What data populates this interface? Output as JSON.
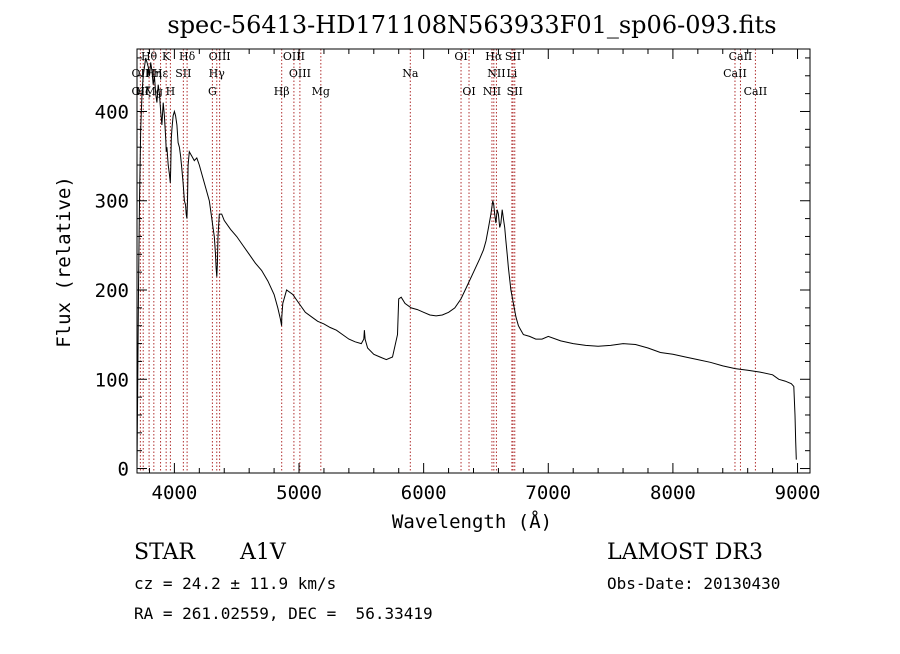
{
  "chart_data": {
    "type": "line",
    "title": "spec-56413-HD171108N563933F01_sp06-093.fits",
    "xlabel": "Wavelength (Å)",
    "ylabel": "Flux (relative)",
    "xlim": [
      3700,
      9100
    ],
    "ylim": [
      -5,
      470
    ],
    "xticks": [
      4000,
      5000,
      6000,
      7000,
      8000,
      9000
    ],
    "yticks": [
      0,
      100,
      200,
      300,
      400
    ],
    "grid": false,
    "series": [
      {
        "color": "#000000",
        "x": [
          3700,
          3705,
          3712,
          3720,
          3730,
          3740,
          3750,
          3760,
          3770,
          3780,
          3790,
          3800,
          3810,
          3820,
          3830,
          3840,
          3850,
          3860,
          3870,
          3880,
          3890,
          3900,
          3910,
          3920,
          3930,
          3935,
          3940,
          3950,
          3960,
          3967,
          3970,
          3975,
          3980,
          3990,
          4000,
          4010,
          4020,
          4030,
          4040,
          4050,
          4060,
          4070,
          4080,
          4090,
          4095,
          4100,
          4105,
          4110,
          4120,
          4140,
          4160,
          4180,
          4200,
          4220,
          4240,
          4260,
          4280,
          4300,
          4310,
          4320,
          4330,
          4335,
          4340,
          4345,
          4350,
          4360,
          4380,
          4400,
          4450,
          4500,
          4550,
          4600,
          4650,
          4700,
          4750,
          4800,
          4830,
          4850,
          4860,
          4862,
          4870,
          4880,
          4900,
          4950,
          5000,
          5050,
          5100,
          5150,
          5200,
          5250,
          5300,
          5350,
          5400,
          5450,
          5500,
          5520,
          5525,
          5530,
          5550,
          5600,
          5650,
          5700,
          5750,
          5790,
          5800,
          5820,
          5850,
          5900,
          5950,
          6000,
          6050,
          6100,
          6150,
          6200,
          6250,
          6300,
          6350,
          6400,
          6450,
          6480,
          6500,
          6520,
          6540,
          6555,
          6563,
          6570,
          6580,
          6590,
          6600,
          6610,
          6620,
          6630,
          6640,
          6650,
          6660,
          6670,
          6680,
          6700,
          6720,
          6740,
          6760,
          6780,
          6800,
          6850,
          6900,
          6950,
          7000,
          7100,
          7200,
          7300,
          7400,
          7500,
          7600,
          7700,
          7800,
          7900,
          8000,
          8100,
          8200,
          8300,
          8400,
          8500,
          8600,
          8700,
          8800,
          8850,
          8900,
          8950,
          8970,
          8980,
          8985,
          8990
        ],
        "y": [
          0,
          80,
          200,
          300,
          380,
          420,
          440,
          450,
          460,
          455,
          450,
          440,
          455,
          445,
          430,
          440,
          420,
          410,
          430,
          420,
          400,
          385,
          410,
          395,
          370,
          355,
          360,
          340,
          330,
          320,
          335,
          370,
          380,
          395,
          400,
          395,
          385,
          365,
          360,
          350,
          335,
          320,
          300,
          295,
          285,
          280,
          300,
          340,
          355,
          350,
          345,
          348,
          340,
          330,
          320,
          310,
          300,
          280,
          270,
          260,
          240,
          225,
          215,
          230,
          260,
          285,
          285,
          278,
          268,
          260,
          250,
          240,
          230,
          222,
          210,
          195,
          180,
          168,
          160,
          170,
          185,
          190,
          200,
          195,
          185,
          175,
          170,
          165,
          162,
          158,
          155,
          150,
          145,
          142,
          140,
          145,
          155,
          145,
          135,
          128,
          125,
          122,
          125,
          150,
          190,
          192,
          185,
          180,
          178,
          175,
          172,
          171,
          172,
          175,
          180,
          190,
          205,
          220,
          235,
          245,
          255,
          270,
          285,
          300,
          295,
          285,
          275,
          290,
          285,
          270,
          275,
          290,
          280,
          270,
          255,
          240,
          225,
          200,
          185,
          170,
          160,
          155,
          150,
          148,
          145,
          145,
          148,
          143,
          140,
          138,
          137,
          138,
          140,
          139,
          135,
          130,
          128,
          125,
          122,
          119,
          115,
          112,
          110,
          108,
          105,
          100,
          98,
          95,
          92,
          60,
          30,
          10
        ]
      }
    ],
    "annotations": {
      "line_markers": [
        {
          "label": "Hθ",
          "x": 3797,
          "row": 1
        },
        {
          "label": "K",
          "x": 3934,
          "row": 1
        },
        {
          "label": "Hδ",
          "x": 4102,
          "row": 1
        },
        {
          "label": "OIII",
          "x": 4363,
          "row": 1
        },
        {
          "label": "OIII",
          "x": 4959,
          "row": 1
        },
        {
          "label": "OI",
          "x": 6300,
          "row": 1
        },
        {
          "label": "Hα",
          "x": 6563,
          "row": 1
        },
        {
          "label": "SII",
          "x": 6717,
          "row": 1
        },
        {
          "label": "CaII",
          "x": 8542,
          "row": 1
        },
        {
          "label": "OII",
          "x": 3727,
          "row": 2
        },
        {
          "label": "Hη",
          "x": 3835,
          "row": 2
        },
        {
          "label": "Hε",
          "x": 3889,
          "row": 2
        },
        {
          "label": "SII",
          "x": 4072,
          "row": 2
        },
        {
          "label": "Hγ",
          "x": 4340,
          "row": 2
        },
        {
          "label": "OIII",
          "x": 5007,
          "row": 2
        },
        {
          "label": "Na",
          "x": 5893,
          "row": 2
        },
        {
          "label": "NII",
          "x": 6584,
          "row": 2
        },
        {
          "label": "Li",
          "x": 6708,
          "row": 2
        },
        {
          "label": "CaII",
          "x": 8498,
          "row": 2
        },
        {
          "label": "OII",
          "x": 3727,
          "row": 3
        },
        {
          "label": "Hζ",
          "x": 3750,
          "row": 3
        },
        {
          "label": "Mg",
          "x": 3835,
          "row": 3
        },
        {
          "label": "H",
          "x": 3968,
          "row": 3
        },
        {
          "label": "G",
          "x": 4305,
          "row": 3
        },
        {
          "label": "Hβ",
          "x": 4861,
          "row": 3
        },
        {
          "label": "Mg",
          "x": 5175,
          "row": 3
        },
        {
          "label": "OI",
          "x": 6364,
          "row": 3
        },
        {
          "label": "NII",
          "x": 6548,
          "row": 3
        },
        {
          "label": "SII",
          "x": 6731,
          "row": 3
        },
        {
          "label": "CaII",
          "x": 8662,
          "row": 3
        }
      ],
      "marker_color": "#b03030"
    }
  },
  "info": {
    "object_type": "STAR",
    "spectral_class": "A1V",
    "survey": "LAMOST DR3",
    "cz": "cz = 24.2 ± 11.9 km/s",
    "obs_date": "Obs-Date: 20130430",
    "coords": "RA = 261.02559, DEC =  56.33419"
  }
}
